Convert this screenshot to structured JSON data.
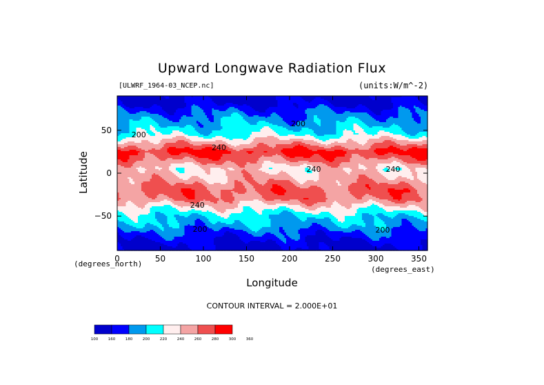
{
  "chart_data": {
    "type": "heatmap",
    "title": "Upward Longwave Radiation Flux",
    "source_label": "[ULWRF_1964-03_NCEP.nc]",
    "units_label": "(units:W/m^-2)",
    "xlabel": "Longitude",
    "ylabel": "Latitude",
    "x_unit_label": "(degrees_east)",
    "y_unit_label": "(degrees_north)",
    "contour_interval_label": "CONTOUR INTERVAL = 2.000E+01",
    "xlim": [
      0,
      360
    ],
    "ylim": [
      -90,
      90
    ],
    "x_ticks": [
      0,
      50,
      100,
      150,
      200,
      250,
      300,
      350
    ],
    "x_tick_labels": [
      "0",
      "50",
      "100",
      "150",
      "200",
      "250",
      "300",
      "350"
    ],
    "y_ticks": [
      50,
      0,
      -50
    ],
    "y_tick_labels": [
      "50",
      "0",
      "−50"
    ],
    "contour_labels": [
      {
        "text": "200",
        "lon": 25,
        "lat": 45
      },
      {
        "text": "200",
        "lon": 210,
        "lat": 58
      },
      {
        "text": "240",
        "lon": 118,
        "lat": 30
      },
      {
        "text": "240",
        "lon": 228,
        "lat": 5
      },
      {
        "text": "240",
        "lon": 320,
        "lat": 5
      },
      {
        "text": "240",
        "lon": 93,
        "lat": -37
      },
      {
        "text": "200",
        "lon": 96,
        "lat": -65
      },
      {
        "text": "200",
        "lon": 308,
        "lat": -66
      }
    ],
    "legend": {
      "levels": [
        "100",
        "160",
        "180",
        "200",
        "220",
        "240",
        "260",
        "280",
        "300",
        "360"
      ],
      "colors": [
        "#0000cc",
        "#0000ff",
        "#0099ee",
        "#00ffff",
        "#ffeeee",
        "#f4a4a4",
        "#ef4f4f",
        "#ff0000"
      ]
    },
    "latitude_band_values": [
      {
        "lat": 90,
        "value": 150
      },
      {
        "lat": 80,
        "value": 160
      },
      {
        "lat": 70,
        "value": 180
      },
      {
        "lat": 55,
        "value": 200
      },
      {
        "lat": 45,
        "value": 215
      },
      {
        "lat": 35,
        "value": 250
      },
      {
        "lat": 25,
        "value": 285
      },
      {
        "lat": 18,
        "value": 270
      },
      {
        "lat": 5,
        "value": 235
      },
      {
        "lat": -5,
        "value": 245
      },
      {
        "lat": -20,
        "value": 270
      },
      {
        "lat": -30,
        "value": 262
      },
      {
        "lat": -40,
        "value": 232
      },
      {
        "lat": -50,
        "value": 205
      },
      {
        "lat": -60,
        "value": 195
      },
      {
        "lat": -70,
        "value": 175
      },
      {
        "lat": -80,
        "value": 160
      },
      {
        "lat": -90,
        "value": 150
      }
    ],
    "grid": false
  }
}
